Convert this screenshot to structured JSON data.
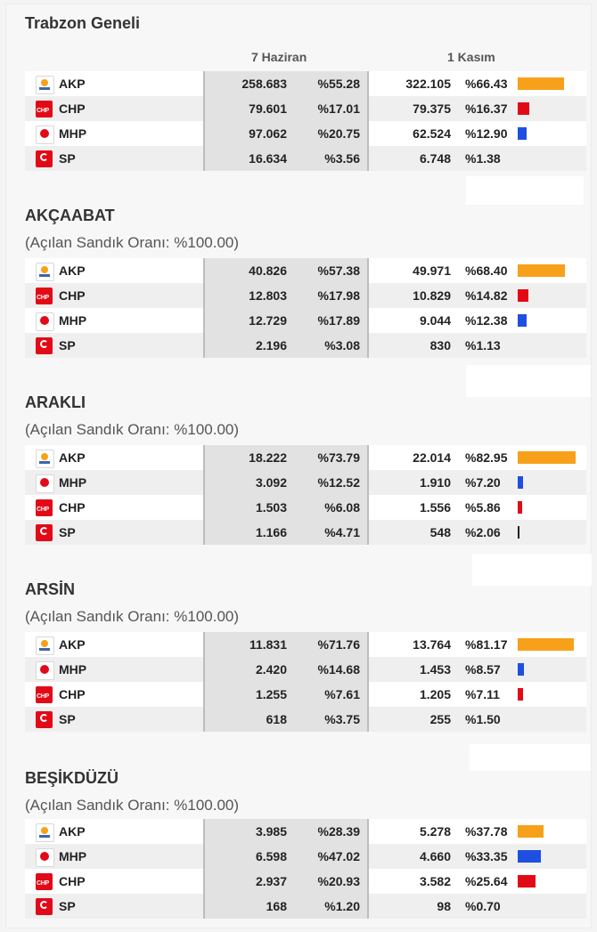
{
  "colors": {
    "AKP": "#f7a11a",
    "CHP": "#e30a17",
    "MHP": "#1f4fe0",
    "SP": "#222222"
  },
  "sections": [
    {
      "title": "Trabzon Geneli",
      "subtitle": "",
      "col_june": "7 Haziran",
      "col_nov": "1 Kasım",
      "rows": [
        {
          "party": "AKP",
          "june_votes": "258.683",
          "june_pct": "%55.28",
          "nov_votes": "322.105",
          "nov_pct": "%66.43",
          "nov_share": 66.43
        },
        {
          "party": "CHP",
          "june_votes": "79.601",
          "june_pct": "%17.01",
          "nov_votes": "79.375",
          "nov_pct": "%16.37",
          "nov_share": 16.37
        },
        {
          "party": "MHP",
          "june_votes": "97.062",
          "june_pct": "%20.75",
          "nov_votes": "62.524",
          "nov_pct": "%12.90",
          "nov_share": 12.9
        },
        {
          "party": "SP",
          "june_votes": "16.634",
          "june_pct": "%3.56",
          "nov_votes": "6.748",
          "nov_pct": "%1.38",
          "nov_share": 0
        }
      ]
    },
    {
      "title": "AKÇAABAT",
      "subtitle": "(Açılan Sandık Oranı: %100.00)",
      "rows": [
        {
          "party": "AKP",
          "june_votes": "40.826",
          "june_pct": "%57.38",
          "nov_votes": "49.971",
          "nov_pct": "%68.40",
          "nov_share": 68.4
        },
        {
          "party": "CHP",
          "june_votes": "12.803",
          "june_pct": "%17.98",
          "nov_votes": "10.829",
          "nov_pct": "%14.82",
          "nov_share": 14.82
        },
        {
          "party": "MHP",
          "june_votes": "12.729",
          "june_pct": "%17.89",
          "nov_votes": "9.044",
          "nov_pct": "%12.38",
          "nov_share": 12.38
        },
        {
          "party": "SP",
          "june_votes": "2.196",
          "june_pct": "%3.08",
          "nov_votes": "830",
          "nov_pct": "%1.13",
          "nov_share": 0
        }
      ]
    },
    {
      "title": "ARAKLI",
      "subtitle": "(Açılan Sandık Oranı: %100.00)",
      "rows": [
        {
          "party": "AKP",
          "june_votes": "18.222",
          "june_pct": "%73.79",
          "nov_votes": "22.014",
          "nov_pct": "%82.95",
          "nov_share": 82.95
        },
        {
          "party": "MHP",
          "june_votes": "3.092",
          "june_pct": "%12.52",
          "nov_votes": "1.910",
          "nov_pct": "%7.20",
          "nov_share": 7.2
        },
        {
          "party": "CHP",
          "june_votes": "1.503",
          "june_pct": "%6.08",
          "nov_votes": "1.556",
          "nov_pct": "%5.86",
          "nov_share": 5.86
        },
        {
          "party": "SP",
          "june_votes": "1.166",
          "june_pct": "%4.71",
          "nov_votes": "548",
          "nov_pct": "%2.06",
          "nov_share": 2.06
        }
      ]
    },
    {
      "title": "ARSİN",
      "subtitle": "(Açılan Sandık Oranı: %100.00)",
      "rows": [
        {
          "party": "AKP",
          "june_votes": "11.831",
          "june_pct": "%71.76",
          "nov_votes": "13.764",
          "nov_pct": "%81.17",
          "nov_share": 81.17
        },
        {
          "party": "MHP",
          "june_votes": "2.420",
          "june_pct": "%14.68",
          "nov_votes": "1.453",
          "nov_pct": "%8.57",
          "nov_share": 8.57
        },
        {
          "party": "CHP",
          "june_votes": "1.255",
          "june_pct": "%7.61",
          "nov_votes": "1.205",
          "nov_pct": "%7.11",
          "nov_share": 7.11
        },
        {
          "party": "SP",
          "june_votes": "618",
          "june_pct": "%3.75",
          "nov_votes": "255",
          "nov_pct": "%1.50",
          "nov_share": 0
        }
      ]
    },
    {
      "title": "BEŞİKDÜZÜ",
      "subtitle": "(Açılan Sandık Oranı: %100.00)",
      "rows": [
        {
          "party": "AKP",
          "june_votes": "3.985",
          "june_pct": "%28.39",
          "nov_votes": "5.278",
          "nov_pct": "%37.78",
          "nov_share": 37.78
        },
        {
          "party": "MHP",
          "june_votes": "6.598",
          "june_pct": "%47.02",
          "nov_votes": "4.660",
          "nov_pct": "%33.35",
          "nov_share": 33.35
        },
        {
          "party": "CHP",
          "june_votes": "2.937",
          "june_pct": "%20.93",
          "nov_votes": "3.582",
          "nov_pct": "%25.64",
          "nov_share": 25.64
        },
        {
          "party": "SP",
          "june_votes": "168",
          "june_pct": "%1.20",
          "nov_votes": "98",
          "nov_pct": "%0.70",
          "nov_share": 0
        }
      ]
    }
  ]
}
